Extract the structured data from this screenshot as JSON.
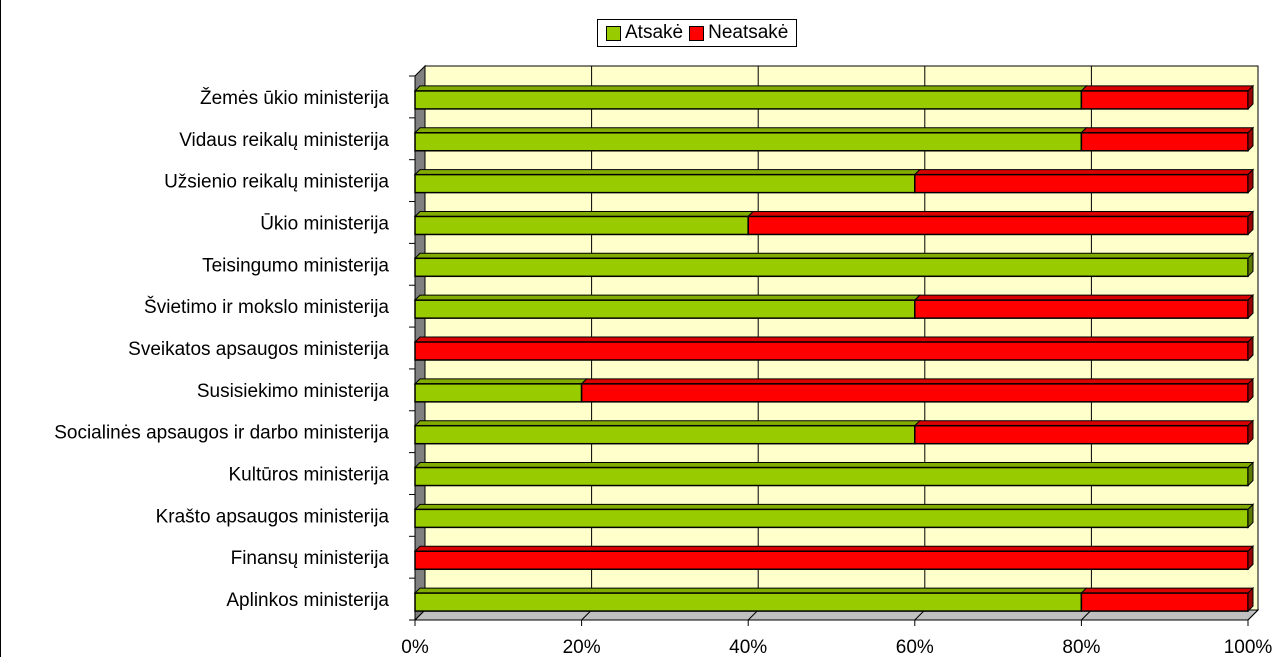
{
  "chart_data": {
    "type": "bar",
    "orientation": "horizontal",
    "stacked": "percent",
    "categories": [
      "Žemės ūkio ministerija",
      "Vidaus reikalų ministerija",
      "Užsienio reikalų ministerija",
      "Ūkio ministerija",
      "Teisingumo ministerija",
      "Švietimo ir mokslo ministerija",
      "Sveikatos apsaugos ministerija",
      "Susisiekimo ministerija",
      "Socialinės apsaugos ir darbo ministerija",
      "Kultūros ministerija",
      "Krašto apsaugos ministerija",
      "Finansų ministerija",
      "Aplinkos ministerija"
    ],
    "series": [
      {
        "name": "Atsakė",
        "color": "#99cc00",
        "values": [
          80,
          80,
          60,
          40,
          100,
          60,
          0,
          20,
          60,
          100,
          100,
          0,
          80
        ]
      },
      {
        "name": "Neatsakė",
        "color": "#ff0000",
        "values": [
          20,
          20,
          40,
          60,
          0,
          40,
          100,
          80,
          40,
          0,
          0,
          100,
          20
        ]
      }
    ],
    "x_ticks": [
      "0%",
      "20%",
      "40%",
      "60%",
      "80%",
      "100%"
    ],
    "xlim": [
      0,
      100
    ],
    "plot_background": "#ffffcc",
    "grid": true,
    "legend_position": "top"
  }
}
